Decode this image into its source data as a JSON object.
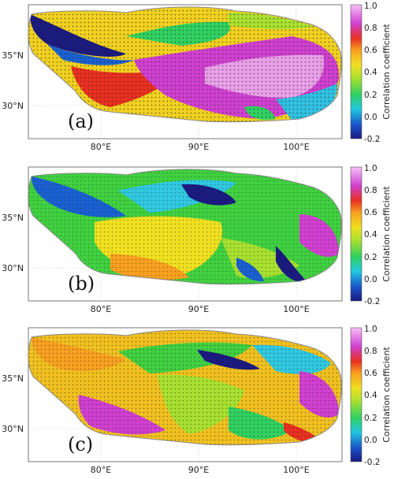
{
  "panels": [
    {
      "label": "(a)",
      "pattern": "a"
    },
    {
      "label": "(b)",
      "pattern": "b"
    },
    {
      "label": "(c)",
      "pattern": "c"
    }
  ],
  "lat_ticks": [
    "35°N",
    "30°N"
  ],
  "lon_ticks": [
    "80°E",
    "90°E",
    "100°E"
  ],
  "colorbar": {
    "label": "Correlation coefficient",
    "ticks": [
      "1.0",
      "0.8",
      "0.6",
      "0.4",
      "0.2",
      "0.0",
      "-0.2"
    ],
    "range": [
      -0.2,
      1.0
    ],
    "colors": [
      "#1a1a8a",
      "#1a5fd0",
      "#22d0e0",
      "#40d040",
      "#a0e030",
      "#f0e020",
      "#f8a020",
      "#e83020",
      "#d040d0",
      "#f0a0f0"
    ]
  }
}
